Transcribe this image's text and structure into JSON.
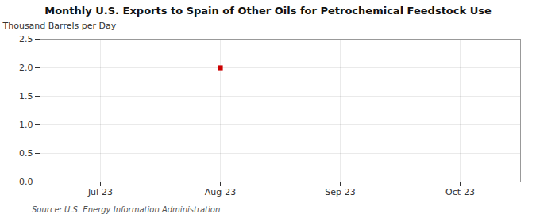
{
  "chart_data": {
    "type": "scatter",
    "title": "Monthly U.S. Exports to Spain of Other Oils for Petrochemical Feedstock Use",
    "ylabel": "Thousand Barrels per Day",
    "source": "Source: U.S. Energy Information Administration",
    "categories": [
      "Jul-23",
      "Aug-23",
      "Sep-23",
      "Oct-23"
    ],
    "values": [
      null,
      2.0,
      null,
      null
    ],
    "color": "#cc0000",
    "marker": "square",
    "ylim": [
      0.0,
      2.5
    ],
    "yticks": [
      {
        "value": 0,
        "label": "0.0"
      },
      0.5,
      {
        "value": 1,
        "label": "1.0"
      },
      1.5,
      {
        "value": 2,
        "label": "2.0"
      },
      2.5
    ],
    "grid": true
  }
}
